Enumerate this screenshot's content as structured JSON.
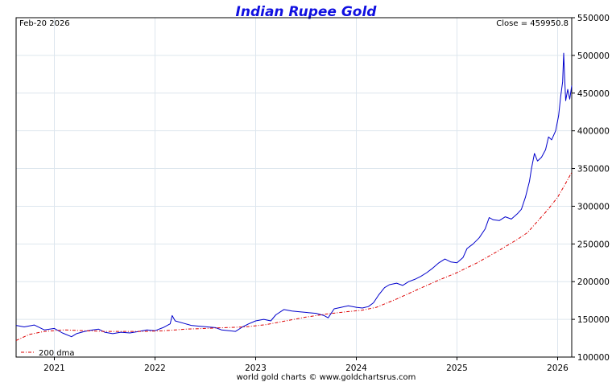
{
  "chart_data": {
    "type": "line",
    "title": "Indian Rupee Gold",
    "date_label": "Feb-20  2026",
    "close_label": "Close = 459950.8",
    "footer": "world gold charts © www.goldchartsrus.com",
    "legend_label": "200 dma",
    "ylim": [
      100000,
      550000
    ],
    "y_ticks": [
      100000,
      150000,
      200000,
      250000,
      300000,
      350000,
      400000,
      450000,
      500000,
      550000
    ],
    "y_tick_labels": [
      "100000",
      "150000",
      "200000",
      "250000",
      "300000",
      "350000",
      "400000",
      "450000",
      "500000",
      "550000"
    ],
    "xlim": [
      2020.62,
      2026.14
    ],
    "x_ticks": [
      2021,
      2022,
      2023,
      2024,
      2025,
      2026
    ],
    "x_tick_labels": [
      "2021",
      "2022",
      "2023",
      "2024",
      "2025",
      "2026"
    ],
    "series": [
      {
        "name": "Indian Rupee Gold",
        "color": "#0000cc",
        "style": "solid",
        "points": [
          [
            2020.62,
            142000
          ],
          [
            2020.7,
            140000
          ],
          [
            2020.8,
            142500
          ],
          [
            2020.9,
            136000
          ],
          [
            2021.0,
            138000
          ],
          [
            2021.08,
            132000
          ],
          [
            2021.17,
            127000
          ],
          [
            2021.22,
            131000
          ],
          [
            2021.3,
            134000
          ],
          [
            2021.38,
            136000
          ],
          [
            2021.44,
            137000
          ],
          [
            2021.5,
            133000
          ],
          [
            2021.58,
            131000
          ],
          [
            2021.66,
            133000
          ],
          [
            2021.75,
            132000
          ],
          [
            2021.84,
            134000
          ],
          [
            2021.92,
            136000
          ],
          [
            2022.0,
            135000
          ],
          [
            2022.08,
            139000
          ],
          [
            2022.15,
            144000
          ],
          [
            2022.17,
            155000
          ],
          [
            2022.2,
            148000
          ],
          [
            2022.28,
            145000
          ],
          [
            2022.36,
            142000
          ],
          [
            2022.44,
            141000
          ],
          [
            2022.52,
            140000
          ],
          [
            2022.6,
            139000
          ],
          [
            2022.66,
            136000
          ],
          [
            2022.74,
            135000
          ],
          [
            2022.8,
            134000
          ],
          [
            2022.87,
            140000
          ],
          [
            2022.93,
            144000
          ],
          [
            2023.0,
            148000
          ],
          [
            2023.08,
            150000
          ],
          [
            2023.15,
            148000
          ],
          [
            2023.2,
            156000
          ],
          [
            2023.28,
            163000
          ],
          [
            2023.36,
            161000
          ],
          [
            2023.44,
            160000
          ],
          [
            2023.52,
            159000
          ],
          [
            2023.6,
            158000
          ],
          [
            2023.68,
            155000
          ],
          [
            2023.72,
            152000
          ],
          [
            2023.78,
            164000
          ],
          [
            2023.85,
            166000
          ],
          [
            2023.92,
            168000
          ],
          [
            2024.0,
            166000
          ],
          [
            2024.06,
            165000
          ],
          [
            2024.12,
            167000
          ],
          [
            2024.17,
            172000
          ],
          [
            2024.22,
            182000
          ],
          [
            2024.28,
            192000
          ],
          [
            2024.33,
            196000
          ],
          [
            2024.4,
            198000
          ],
          [
            2024.46,
            195000
          ],
          [
            2024.52,
            200000
          ],
          [
            2024.58,
            203000
          ],
          [
            2024.64,
            207000
          ],
          [
            2024.7,
            212000
          ],
          [
            2024.76,
            218000
          ],
          [
            2024.82,
            225000
          ],
          [
            2024.88,
            230000
          ],
          [
            2024.94,
            226000
          ],
          [
            2025.0,
            225000
          ],
          [
            2025.06,
            232000
          ],
          [
            2025.1,
            244000
          ],
          [
            2025.16,
            250000
          ],
          [
            2025.22,
            258000
          ],
          [
            2025.28,
            270000
          ],
          [
            2025.32,
            285000
          ],
          [
            2025.36,
            282000
          ],
          [
            2025.42,
            281000
          ],
          [
            2025.48,
            286000
          ],
          [
            2025.54,
            283000
          ],
          [
            2025.6,
            290000
          ],
          [
            2025.64,
            296000
          ],
          [
            2025.68,
            312000
          ],
          [
            2025.72,
            333000
          ],
          [
            2025.74,
            350000
          ],
          [
            2025.77,
            370000
          ],
          [
            2025.8,
            360000
          ],
          [
            2025.84,
            365000
          ],
          [
            2025.88,
            375000
          ],
          [
            2025.91,
            392000
          ],
          [
            2025.94,
            388000
          ],
          [
            2025.98,
            400000
          ],
          [
            2026.01,
            420000
          ],
          [
            2026.03,
            445000
          ],
          [
            2026.05,
            465000
          ],
          [
            2026.06,
            503000
          ],
          [
            2026.07,
            470000
          ],
          [
            2026.08,
            440000
          ],
          [
            2026.1,
            455000
          ],
          [
            2026.12,
            442000
          ],
          [
            2026.14,
            460000
          ]
        ]
      },
      {
        "name": "200 dma",
        "color": "#dd0000",
        "style": "dashdot",
        "points": [
          [
            2020.62,
            122000
          ],
          [
            2020.75,
            130000
          ],
          [
            2020.9,
            134000
          ],
          [
            2021.1,
            136000
          ],
          [
            2021.3,
            135000
          ],
          [
            2021.5,
            134000
          ],
          [
            2021.7,
            134000
          ],
          [
            2021.9,
            134000
          ],
          [
            2022.1,
            135000
          ],
          [
            2022.3,
            137000
          ],
          [
            2022.5,
            138000
          ],
          [
            2022.7,
            139000
          ],
          [
            2022.9,
            140000
          ],
          [
            2023.1,
            143000
          ],
          [
            2023.3,
            148000
          ],
          [
            2023.5,
            153000
          ],
          [
            2023.7,
            157000
          ],
          [
            2023.9,
            160000
          ],
          [
            2024.05,
            162000
          ],
          [
            2024.2,
            166000
          ],
          [
            2024.4,
            177000
          ],
          [
            2024.6,
            189000
          ],
          [
            2024.8,
            201000
          ],
          [
            2025.0,
            212000
          ],
          [
            2025.2,
            225000
          ],
          [
            2025.4,
            240000
          ],
          [
            2025.6,
            256000
          ],
          [
            2025.7,
            265000
          ],
          [
            2025.8,
            280000
          ],
          [
            2025.9,
            295000
          ],
          [
            2026.0,
            312000
          ],
          [
            2026.07,
            328000
          ],
          [
            2026.14,
            345000
          ]
        ]
      }
    ]
  }
}
